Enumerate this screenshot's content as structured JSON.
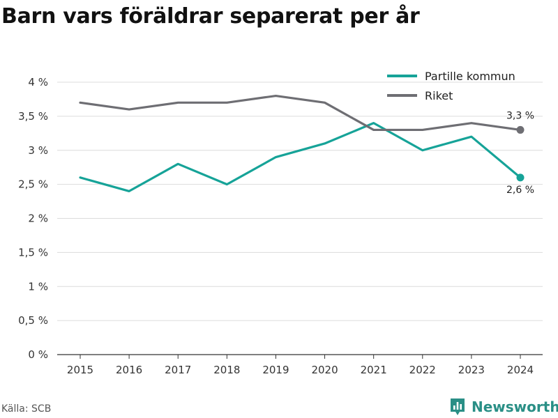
{
  "title": "Barn vars föräldrar separerat per år",
  "source": "Källa: SCB",
  "brand": {
    "name": "Newsworthy",
    "icon": "newsworthy-logo-icon",
    "color": "#2a8f86"
  },
  "chart_data": {
    "type": "line",
    "title": "Barn vars föräldrar separerat per år",
    "categories": [
      "2015",
      "2016",
      "2017",
      "2018",
      "2019",
      "2020",
      "2021",
      "2022",
      "2023",
      "2024"
    ],
    "series": [
      {
        "name": "Partille kommun",
        "color": "#16a398",
        "values": [
          2.6,
          2.4,
          2.8,
          2.5,
          2.9,
          3.1,
          3.4,
          3.0,
          3.2,
          2.6
        ],
        "end_label": "2,6 %"
      },
      {
        "name": "Riket",
        "color": "#6e6e73",
        "values": [
          3.7,
          3.6,
          3.7,
          3.7,
          3.8,
          3.7,
          3.3,
          3.3,
          3.4,
          3.3
        ],
        "end_label": "3,3 %"
      }
    ],
    "y_ticks": [
      0,
      0.5,
      1,
      1.5,
      2,
      2.5,
      3,
      3.5,
      4
    ],
    "y_tick_labels": [
      "0 %",
      "0,5 %",
      "1 %",
      "1,5 %",
      "2 %",
      "2,5 %",
      "3 %",
      "3,5 %",
      "4 %"
    ],
    "ylim": [
      0,
      4
    ],
    "grid": true,
    "legend_position": "top-right",
    "xlabel": "",
    "ylabel": ""
  }
}
